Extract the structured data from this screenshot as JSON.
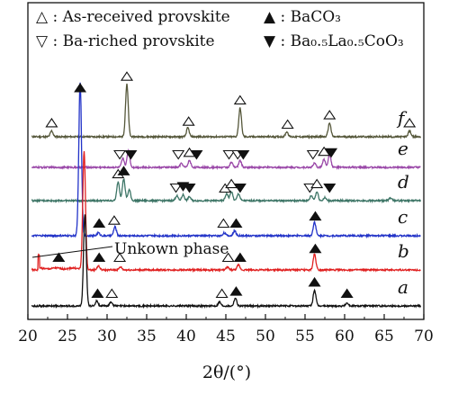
{
  "chart_data": {
    "type": "line",
    "xlabel": "2θ/(°)",
    "ylabel": "",
    "xlim": [
      20,
      70
    ],
    "x_ticks": [
      "20",
      "25",
      "30",
      "35",
      "40",
      "45",
      "50",
      "55",
      "60",
      "65",
      "70"
    ],
    "grid": false,
    "legend": {
      "placement": "top",
      "items": [
        {
          "label": "△ : As-received provskite",
          "symbol": "triangle-up-open"
        },
        {
          "label": "▽ : Ba-riched provskite",
          "symbol": "triangle-down-open"
        },
        {
          "label": "▲ : BaCO₃",
          "symbol": "triangle-up-filled"
        },
        {
          "label": "▼ : Ba₀.₅La₀.₅CoO₃",
          "symbol": "triangle-down-filled"
        }
      ]
    },
    "annotation": {
      "text": "Unkown phase",
      "x": 21.4
    },
    "series": [
      {
        "name": "f",
        "color": "#55573a",
        "peaks": [
          [
            23.0,
            0.6
          ],
          [
            32.5,
            5.3
          ],
          [
            40.2,
            0.9
          ],
          [
            46.8,
            2.9
          ],
          [
            52.7,
            0.5
          ],
          [
            58.1,
            1.4
          ],
          [
            68.2,
            0.6
          ]
        ],
        "markers": [
          {
            "x": 23.0,
            "m": "tu"
          },
          {
            "x": 32.5,
            "m": "tu"
          },
          {
            "x": 40.3,
            "m": "tu"
          },
          {
            "x": 46.8,
            "m": "tu"
          },
          {
            "x": 52.8,
            "m": "tu"
          },
          {
            "x": 58.1,
            "m": "tu"
          },
          {
            "x": 68.2,
            "m": "tu"
          }
        ]
      },
      {
        "name": "e",
        "color": "#9a48a8",
        "peaks": [
          [
            32.0,
            0.9
          ],
          [
            32.7,
            1.7
          ],
          [
            39.4,
            0.4
          ],
          [
            40.4,
            0.7
          ],
          [
            45.7,
            0.5
          ],
          [
            46.8,
            0.7
          ],
          [
            56.2,
            0.4
          ],
          [
            57.4,
            0.8
          ],
          [
            58.1,
            1.3
          ]
        ],
        "markers": [
          {
            "x": 31.6,
            "m": "td"
          },
          {
            "x": 33.0,
            "m": "fd"
          },
          {
            "x": 39.0,
            "m": "td"
          },
          {
            "x": 40.4,
            "m": "tu"
          },
          {
            "x": 41.3,
            "m": "fd"
          },
          {
            "x": 45.4,
            "m": "td"
          },
          {
            "x": 46.5,
            "m": "td"
          },
          {
            "x": 47.2,
            "m": "fd"
          },
          {
            "x": 56.0,
            "m": "td"
          },
          {
            "x": 57.4,
            "m": "tu"
          },
          {
            "x": 58.3,
            "m": "fd"
          }
        ]
      },
      {
        "name": "d",
        "color": "#3d7566",
        "peaks": [
          [
            31.4,
            1.9
          ],
          [
            32.1,
            2.2
          ],
          [
            32.8,
            1.1
          ],
          [
            38.8,
            0.5
          ],
          [
            39.6,
            0.6
          ],
          [
            40.4,
            0.4
          ],
          [
            45.1,
            0.7
          ],
          [
            45.7,
            0.9
          ],
          [
            46.6,
            0.7
          ],
          [
            55.8,
            0.5
          ],
          [
            56.5,
            0.9
          ],
          [
            57.5,
            0.3
          ],
          [
            65.8,
            0.3
          ]
        ],
        "markers": [
          {
            "x": 31.4,
            "m": "tu"
          },
          {
            "x": 32.1,
            "m": "fu"
          },
          {
            "x": 38.7,
            "m": "td"
          },
          {
            "x": 39.6,
            "m": "fd"
          },
          {
            "x": 40.4,
            "m": "fd"
          },
          {
            "x": 44.9,
            "m": "tu"
          },
          {
            "x": 45.7,
            "m": "tu"
          },
          {
            "x": 46.8,
            "m": "fd"
          },
          {
            "x": 55.6,
            "m": "td"
          },
          {
            "x": 56.5,
            "m": "tu"
          },
          {
            "x": 58.1,
            "m": "fd"
          }
        ]
      },
      {
        "name": "c",
        "color": "#2233c8",
        "peaks": [
          [
            26.6,
            15.5
          ],
          [
            28.9,
            0.3
          ],
          [
            31.0,
            0.9
          ],
          [
            44.8,
            0.3
          ],
          [
            46.1,
            0.5
          ],
          [
            56.2,
            1.4
          ]
        ],
        "markers": [
          {
            "x": 29.0,
            "m": "fu"
          },
          {
            "x": 30.9,
            "m": "tu"
          },
          {
            "x": 44.7,
            "m": "tu"
          },
          {
            "x": 46.3,
            "m": "fu"
          },
          {
            "x": 56.3,
            "m": "fu"
          }
        ]
      },
      {
        "name": "b",
        "color": "#e02020",
        "peaks": [
          [
            27.1,
            12.0
          ],
          [
            28.9,
            0.4
          ],
          [
            31.7,
            0.3
          ],
          [
            45.2,
            0.3
          ],
          [
            46.6,
            0.5
          ],
          [
            56.2,
            1.6
          ]
        ],
        "markers": [
          {
            "x": 23.9,
            "m": "fu"
          },
          {
            "x": 29.0,
            "m": "fu"
          },
          {
            "x": 31.6,
            "m": "tu"
          },
          {
            "x": 45.3,
            "m": "tu"
          },
          {
            "x": 46.8,
            "m": "fu"
          },
          {
            "x": 56.3,
            "m": "fu"
          }
        ]
      },
      {
        "name": "a",
        "color": "#111111",
        "peaks": [
          [
            27.2,
            9.3
          ],
          [
            28.7,
            0.5
          ],
          [
            30.5,
            0.4
          ],
          [
            44.2,
            0.4
          ],
          [
            46.2,
            0.8
          ],
          [
            56.2,
            1.6
          ],
          [
            60.3,
            0.3
          ]
        ],
        "markers": [
          {
            "x": 28.8,
            "m": "fu"
          },
          {
            "x": 30.6,
            "m": "tu"
          },
          {
            "x": 44.5,
            "m": "tu"
          },
          {
            "x": 46.3,
            "m": "fu"
          },
          {
            "x": 56.2,
            "m": "fu"
          },
          {
            "x": 60.3,
            "m": "fu"
          }
        ]
      }
    ]
  }
}
